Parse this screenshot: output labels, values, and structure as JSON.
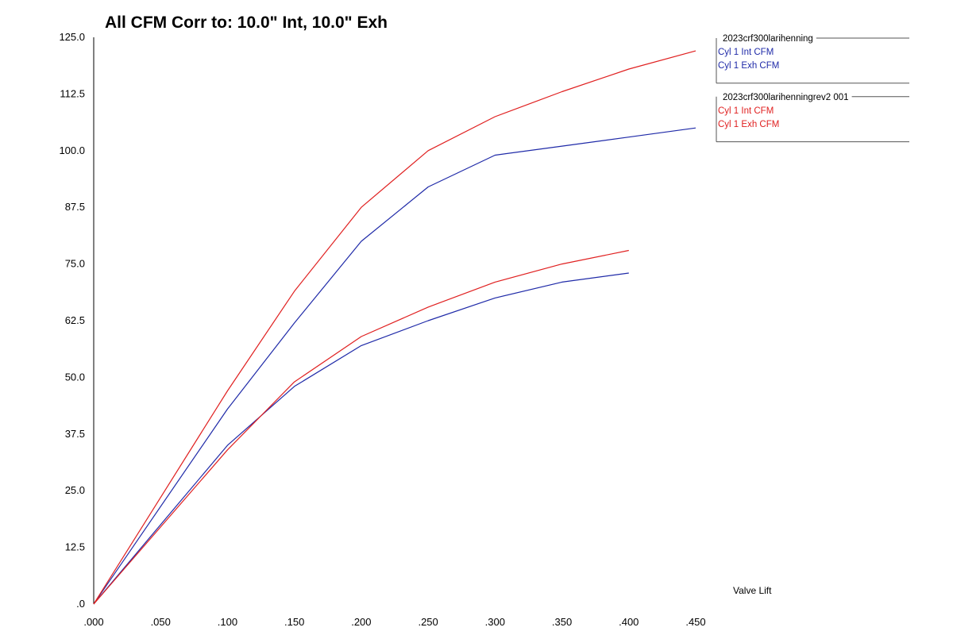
{
  "chart_data": {
    "type": "line",
    "title": "All CFM   Corr to: 10.0\" Int, 10.0\" Exh",
    "xlabel": "Valve Lift",
    "ylabel": "",
    "xlim": [
      0,
      0.45
    ],
    "ylim": [
      0,
      125
    ],
    "x_ticks": [
      ".000",
      ".050",
      ".100",
      ".150",
      ".200",
      ".250",
      ".300",
      ".350",
      ".400",
      ".450"
    ],
    "y_ticks": [
      ".0",
      "12.5",
      "25.0",
      "37.5",
      "50.0",
      "62.5",
      "75.0",
      "87.5",
      "100.0",
      "112.5",
      "125.0"
    ],
    "grid": false,
    "colors": {
      "blue": "#1f2aa8",
      "red": "#e02020"
    },
    "series": [
      {
        "name": "Cyl 1 Int CFM",
        "group": "2023crf300larihenning",
        "color": "blue",
        "x": [
          0,
          0.1,
          0.15,
          0.2,
          0.25,
          0.3,
          0.35,
          0.4,
          0.45
        ],
        "values": [
          0,
          43,
          62,
          80,
          92,
          99,
          101,
          103,
          105
        ]
      },
      {
        "name": "Cyl 1 Exh CFM",
        "group": "2023crf300larihenning",
        "color": "blue",
        "x": [
          0,
          0.1,
          0.15,
          0.2,
          0.25,
          0.3,
          0.35,
          0.4
        ],
        "values": [
          0,
          35,
          48,
          57,
          62.5,
          67.5,
          71,
          73
        ]
      },
      {
        "name": "Cyl 1 Int CFM",
        "group": "2023crf300larihenningrev2 001",
        "color": "red",
        "x": [
          0,
          0.1,
          0.15,
          0.2,
          0.25,
          0.3,
          0.35,
          0.4,
          0.45
        ],
        "values": [
          0,
          47,
          69,
          87.5,
          100,
          107.5,
          113,
          118,
          122
        ]
      },
      {
        "name": "Cyl 1 Exh CFM",
        "group": "2023crf300larihenningrev2 001",
        "color": "red",
        "x": [
          0,
          0.1,
          0.15,
          0.2,
          0.25,
          0.3,
          0.35,
          0.4
        ],
        "values": [
          0,
          34,
          49,
          59,
          65.5,
          71,
          75,
          78
        ]
      }
    ],
    "legend": [
      {
        "name": "2023crf300larihenning",
        "color": "blue",
        "entries": [
          "Cyl 1 Int CFM",
          "Cyl 1 Exh CFM"
        ]
      },
      {
        "name": "2023crf300larihenningrev2 001",
        "color": "red",
        "entries": [
          "Cyl 1 Int CFM",
          "Cyl 1 Exh CFM"
        ]
      }
    ]
  }
}
